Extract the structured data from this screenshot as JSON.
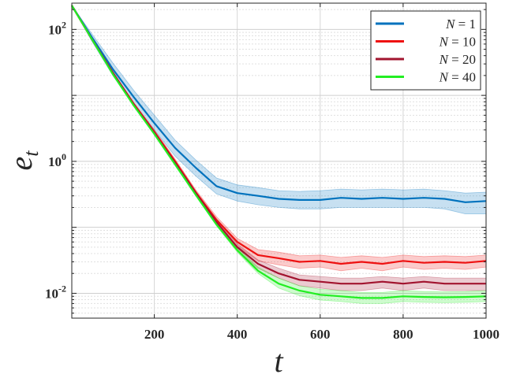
{
  "chart_data": {
    "type": "line",
    "title": "",
    "xlabel": "t",
    "ylabel": "e_t",
    "yscale": "log",
    "xlim": [
      1,
      1000
    ],
    "ylim": [
      0.0042,
      250
    ],
    "x_ticks": [
      200,
      400,
      600,
      800,
      1000
    ],
    "y_ticks": [
      {
        "value": 0.01,
        "base": "10",
        "exp": "-2"
      },
      {
        "value": 1,
        "base": "10",
        "exp": "0"
      },
      {
        "value": 100,
        "base": "10",
        "exp": "2"
      }
    ],
    "grid": true,
    "legend_position": "top-right",
    "x": [
      1,
      50,
      100,
      150,
      200,
      250,
      300,
      350,
      400,
      450,
      500,
      550,
      600,
      650,
      700,
      750,
      800,
      850,
      900,
      950,
      1000
    ],
    "series": [
      {
        "name": "N = 1",
        "color": "#0072BD",
        "values": [
          230,
          75,
          25,
          9.5,
          3.8,
          1.6,
          0.8,
          0.42,
          0.33,
          0.3,
          0.27,
          0.26,
          0.26,
          0.28,
          0.27,
          0.28,
          0.27,
          0.28,
          0.27,
          0.24,
          0.25
        ],
        "band_lower": [
          230,
          65,
          20,
          7.5,
          3.0,
          1.2,
          0.6,
          0.32,
          0.25,
          0.22,
          0.2,
          0.19,
          0.19,
          0.2,
          0.2,
          0.2,
          0.2,
          0.2,
          0.19,
          0.16,
          0.16
        ],
        "band_upper": [
          230,
          85,
          31,
          12,
          5.0,
          2.1,
          1.05,
          0.56,
          0.44,
          0.4,
          0.36,
          0.35,
          0.36,
          0.38,
          0.37,
          0.38,
          0.37,
          0.38,
          0.36,
          0.33,
          0.34
        ]
      },
      {
        "name": "N = 10",
        "color": "#EE1111",
        "values": [
          230,
          70,
          22,
          7.5,
          2.8,
          1.0,
          0.34,
          0.13,
          0.06,
          0.038,
          0.034,
          0.03,
          0.031,
          0.028,
          0.03,
          0.028,
          0.031,
          0.029,
          0.03,
          0.029,
          0.031
        ],
        "band_lower": [
          230,
          67,
          21,
          7.1,
          2.6,
          0.92,
          0.31,
          0.115,
          0.052,
          0.031,
          0.027,
          0.024,
          0.025,
          0.022,
          0.024,
          0.022,
          0.025,
          0.023,
          0.024,
          0.023,
          0.025
        ],
        "band_upper": [
          230,
          73,
          23,
          7.9,
          3.0,
          1.08,
          0.37,
          0.145,
          0.068,
          0.046,
          0.042,
          0.037,
          0.038,
          0.035,
          0.037,
          0.035,
          0.038,
          0.036,
          0.037,
          0.036,
          0.038
        ]
      },
      {
        "name": "N = 20",
        "color": "#A2142F",
        "values": [
          230,
          70,
          22,
          7.3,
          2.7,
          0.95,
          0.33,
          0.12,
          0.05,
          0.028,
          0.02,
          0.016,
          0.015,
          0.014,
          0.014,
          0.015,
          0.014,
          0.015,
          0.014,
          0.014,
          0.014
        ],
        "band_lower": [
          230,
          68,
          21,
          7.0,
          2.6,
          0.9,
          0.31,
          0.11,
          0.045,
          0.024,
          0.017,
          0.013,
          0.012,
          0.011,
          0.011,
          0.012,
          0.011,
          0.012,
          0.011,
          0.011,
          0.011
        ],
        "band_upper": [
          230,
          72,
          23,
          7.6,
          2.8,
          1.0,
          0.35,
          0.13,
          0.056,
          0.032,
          0.024,
          0.019,
          0.018,
          0.017,
          0.017,
          0.018,
          0.017,
          0.018,
          0.017,
          0.017,
          0.017
        ]
      },
      {
        "name": "N = 40",
        "color": "#22EE22",
        "values": [
          230,
          70,
          21,
          7.1,
          2.6,
          0.9,
          0.31,
          0.11,
          0.045,
          0.022,
          0.014,
          0.011,
          0.0095,
          0.009,
          0.0085,
          0.0085,
          0.009,
          0.0088,
          0.0087,
          0.0088,
          0.009
        ],
        "band_lower": [
          230,
          68,
          20,
          6.8,
          2.5,
          0.86,
          0.3,
          0.105,
          0.042,
          0.02,
          0.012,
          0.0092,
          0.0079,
          0.0075,
          0.007,
          0.007,
          0.0075,
          0.0073,
          0.0072,
          0.0073,
          0.0075
        ],
        "band_upper": [
          230,
          72,
          22,
          7.4,
          2.7,
          0.94,
          0.33,
          0.12,
          0.049,
          0.025,
          0.017,
          0.013,
          0.0115,
          0.011,
          0.0103,
          0.0103,
          0.011,
          0.0106,
          0.0105,
          0.0106,
          0.011
        ]
      }
    ]
  }
}
